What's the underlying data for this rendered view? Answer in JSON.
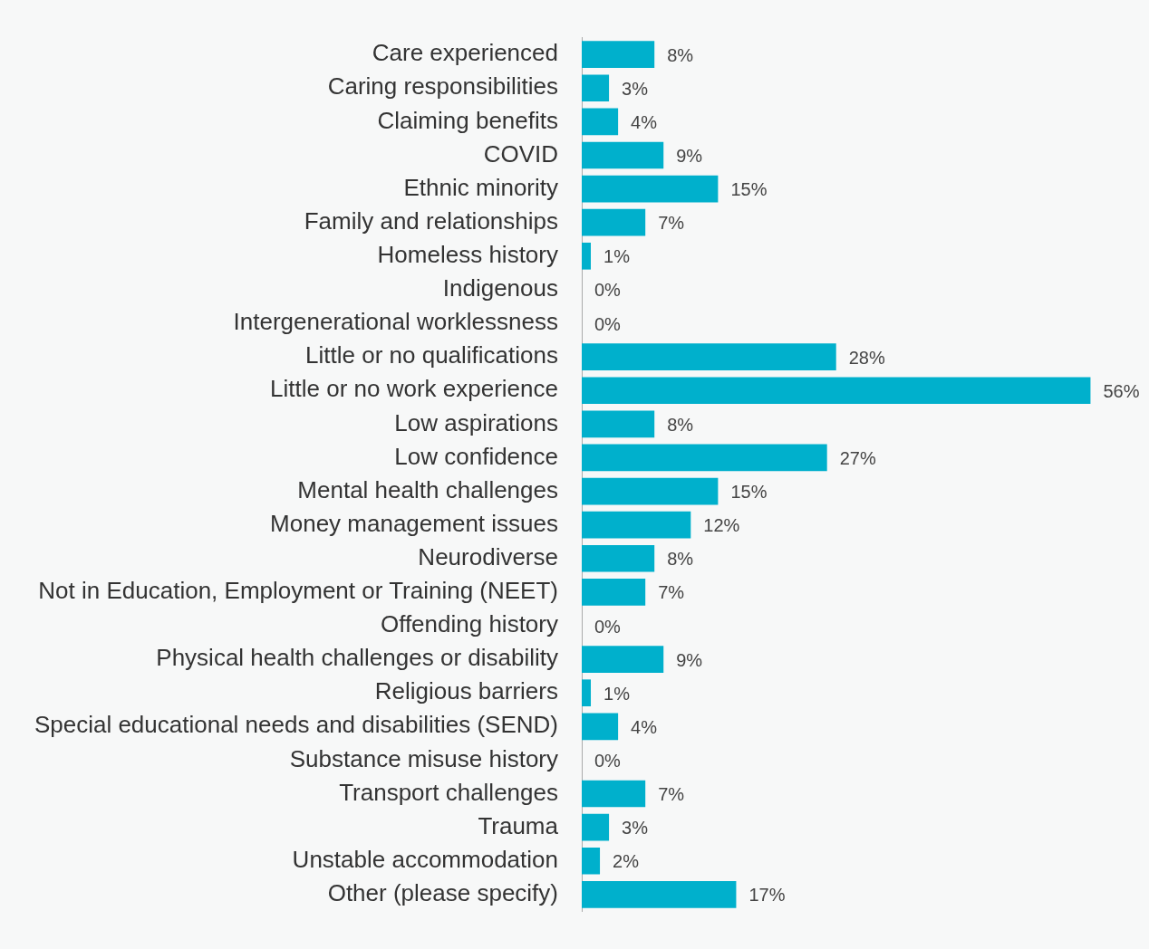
{
  "chart_data": {
    "type": "bar",
    "orientation": "horizontal",
    "categories": [
      "Care experienced",
      "Caring responsibilities",
      "Claiming benefits",
      "COVID",
      "Ethnic minority",
      "Family and relationships",
      "Homeless history",
      "Indigenous",
      "Intergenerational worklessness",
      "Little or no qualifications",
      "Little or no work experience",
      "Low aspirations",
      "Low confidence",
      "Mental health challenges",
      "Money management issues",
      "Neurodiverse",
      "Not in Education, Employment or Training (NEET)",
      "Offending history",
      "Physical health challenges or disability",
      "Religious barriers",
      "Special educational needs and disabilities (SEND)",
      "Substance misuse history",
      "Transport challenges",
      "Trauma",
      "Unstable accommodation",
      "Other (please specify)"
    ],
    "values": [
      8,
      3,
      4,
      9,
      15,
      7,
      1,
      0,
      0,
      28,
      56,
      8,
      27,
      15,
      12,
      8,
      7,
      0,
      9,
      1,
      4,
      0,
      7,
      3,
      2,
      17
    ],
    "value_labels": [
      "8%",
      "3%",
      "4%",
      "9%",
      "15%",
      "7%",
      "1%",
      "0%",
      "0%",
      "28%",
      "56%",
      "8%",
      "27%",
      "15%",
      "12%",
      "8%",
      "7%",
      "0%",
      "9%",
      "1%",
      "4%",
      "0%",
      "7%",
      "3%",
      "2%",
      "17%"
    ],
    "color": "#00b0cc",
    "legend": false,
    "tick_labels": "y"
  }
}
